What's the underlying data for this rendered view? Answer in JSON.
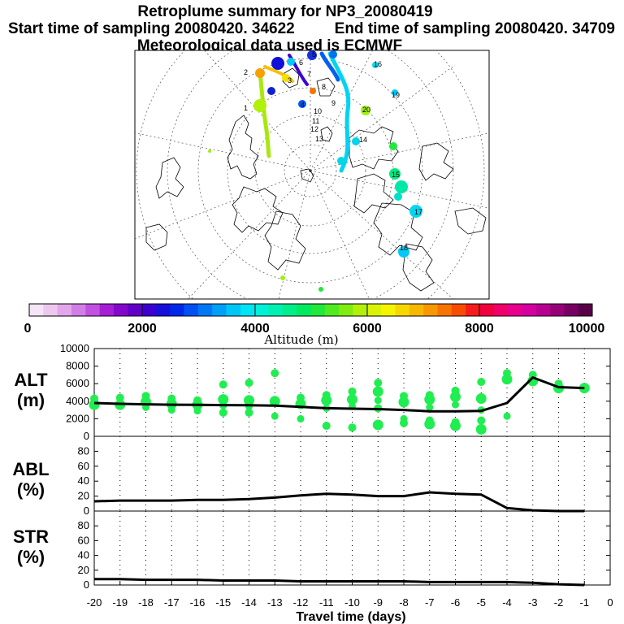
{
  "title": "Retroplume summary for NP3_20080419",
  "start_label": "Start time of sampling 20080420. 34622",
  "end_label": "End time of sampling 20080420. 34709",
  "met_label": "Meteorological data used is ECMWF",
  "colorbar": {
    "ticks": [
      "0",
      "2000",
      "4000",
      "6000",
      "8000",
      "10000"
    ],
    "title": "Altitude (m)",
    "colors": [
      "#f4e4f4",
      "#ecc8ee",
      "#e2a6ea",
      "#d27ee6",
      "#c250e0",
      "#a61ed6",
      "#8408cc",
      "#6200c8",
      "#3c00d0",
      "#1810d8",
      "#0028e8",
      "#0050f2",
      "#0078f6",
      "#00a0f8",
      "#00c6f8",
      "#00e4f4",
      "#00f0d8",
      "#00f0b0",
      "#00ee88",
      "#00ea60",
      "#20e83c",
      "#50ea20",
      "#80ec10",
      "#b0f00a",
      "#d8f406",
      "#f6f400",
      "#f6d800",
      "#f6b800",
      "#f89800",
      "#f87400",
      "#f84c00",
      "#f41c1c",
      "#f0003c",
      "#f00068",
      "#e8008c",
      "#d400a0",
      "#b80090",
      "#980078",
      "#780062",
      "#5a0048"
    ]
  },
  "map": {
    "numbers": [
      "1",
      "2",
      "3",
      "4",
      "5",
      "6",
      "7",
      "8",
      "9",
      "10",
      "11",
      "12",
      "13",
      "14",
      "15",
      "16",
      "17",
      "18",
      "19",
      "20"
    ]
  },
  "chart_data": [
    {
      "type": "line+scatter",
      "panel": "ALT",
      "ylabel": "ALT (m)",
      "ylabel_line1": "ALT",
      "ylabel_line2": "(m)",
      "ylim": [
        0,
        10000
      ],
      "yticks": [
        "0",
        "2000",
        "4000",
        "6000",
        "8000",
        "10000"
      ],
      "x": [
        -20,
        -19,
        -18,
        -17,
        -16,
        -15,
        -14,
        -13,
        -12,
        -11,
        -10,
        -9,
        -8,
        -7,
        -6,
        -5,
        -4,
        -3,
        -2,
        -1
      ],
      "values": [
        3800,
        3700,
        3650,
        3600,
        3580,
        3560,
        3550,
        3500,
        3350,
        3200,
        3150,
        3100,
        3000,
        2850,
        2850,
        2900,
        3800,
        6700,
        5600,
        5500
      ],
      "clusters": [
        {
          "x": -20,
          "y": [
            4300,
            3600
          ]
        },
        {
          "x": -19,
          "y": [
            4400,
            3600
          ]
        },
        {
          "x": -18,
          "y": [
            4600,
            3900,
            3300
          ]
        },
        {
          "x": -17,
          "y": [
            4300,
            3700,
            3000
          ]
        },
        {
          "x": -16,
          "y": [
            4100,
            3600,
            2900
          ]
        },
        {
          "x": -15,
          "y": [
            5900,
            4200,
            3500,
            2700
          ]
        },
        {
          "x": -14,
          "y": [
            6100,
            4100,
            3400,
            2700
          ]
        },
        {
          "x": -13,
          "y": [
            7200,
            4000,
            2300
          ]
        },
        {
          "x": -12,
          "y": [
            4400,
            3700,
            2000
          ]
        },
        {
          "x": -11,
          "y": [
            4700,
            4100,
            3200,
            1200
          ]
        },
        {
          "x": -10,
          "y": [
            5100,
            4200,
            3400,
            1000
          ]
        },
        {
          "x": -9,
          "y": [
            6100,
            5100,
            4100,
            3200,
            1300
          ]
        },
        {
          "x": -8,
          "y": [
            4600,
            3900,
            2000,
            1500
          ]
        },
        {
          "x": -7,
          "y": [
            4700,
            4200,
            3300,
            1800,
            1400
          ]
        },
        {
          "x": -6,
          "y": [
            5200,
            4500,
            3600,
            1600,
            1200
          ]
        },
        {
          "x": -5,
          "y": [
            6200,
            4300,
            3000,
            1800,
            800
          ]
        },
        {
          "x": -4,
          "y": [
            7200,
            6500,
            2300
          ]
        },
        {
          "x": -3,
          "y": [
            7000,
            6300
          ]
        },
        {
          "x": -2,
          "y": [
            6000,
            5500
          ]
        },
        {
          "x": -1,
          "y": [
            5600,
            5500
          ]
        }
      ]
    },
    {
      "type": "line",
      "panel": "ABL",
      "ylabel": "ABL (%)",
      "ylabel_line1": "ABL",
      "ylabel_line2": "(%)",
      "ylim": [
        0,
        100
      ],
      "yticks": [
        "0",
        "20",
        "40",
        "60",
        "80"
      ],
      "x": [
        -20,
        -19,
        -18,
        -17,
        -16,
        -15,
        -14,
        -13,
        -12,
        -11,
        -10,
        -9,
        -8,
        -7,
        -6,
        -5,
        -4,
        -3,
        -2,
        -1
      ],
      "values": [
        13,
        14,
        14,
        14,
        15,
        15,
        16,
        18,
        21,
        23,
        22,
        20,
        20,
        25,
        23,
        22,
        4,
        1,
        0,
        0
      ]
    },
    {
      "type": "line",
      "panel": "STR",
      "ylabel": "STR (%)",
      "ylabel_line1": "STR",
      "ylabel_line2": "(%)",
      "ylim": [
        0,
        100
      ],
      "yticks": [
        "0",
        "20",
        "40",
        "60",
        "80"
      ],
      "x": [
        -20,
        -19,
        -18,
        -17,
        -16,
        -15,
        -14,
        -13,
        -12,
        -11,
        -10,
        -9,
        -8,
        -7,
        -6,
        -5,
        -4,
        -3,
        -2,
        -1
      ],
      "values": [
        8,
        8,
        7,
        7,
        7,
        6,
        6,
        6,
        5,
        5,
        5,
        5,
        5,
        4,
        4,
        4,
        4,
        3,
        1,
        0
      ]
    }
  ],
  "xaxis": {
    "title": "Travel time (days)",
    "ticks": [
      "-20",
      "-19",
      "-18",
      "-17",
      "-16",
      "-15",
      "-14",
      "-13",
      "-12",
      "-11",
      "-10",
      "-9",
      "-8",
      "-7",
      "-6",
      "-5",
      "-4",
      "-3",
      "-2",
      "-1",
      "0"
    ]
  }
}
